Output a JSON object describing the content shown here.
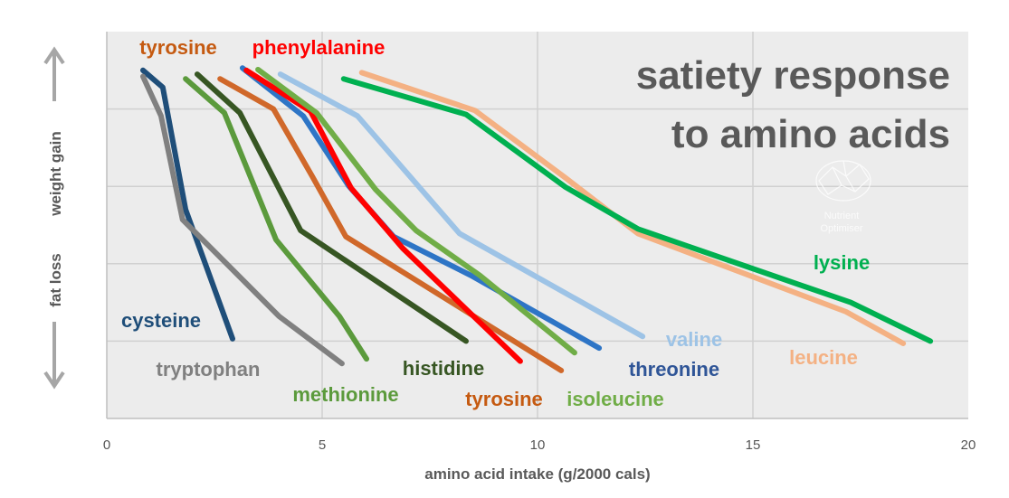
{
  "chart_data": {
    "type": "line",
    "title": "satiety response to amino acids",
    "title_lines": [
      "satiety response",
      "to amino acids"
    ],
    "xlabel": "amino acid intake (g/2000 cals)",
    "ylabel_top": "weight gain",
    "ylabel_bottom": "fat loss",
    "xlim": [
      0,
      20
    ],
    "ylim": [
      0,
      5
    ],
    "xticks": [
      0,
      5,
      10,
      15,
      20
    ],
    "grid": true,
    "legend": "none (direct labels)",
    "watermark": "Nutrient Optimiser",
    "series": [
      {
        "name": "cysteine",
        "color": "#1f4e79",
        "x": [
          0.84,
          1.3,
          1.83,
          2.92
        ],
        "y": [
          4.5,
          4.28,
          2.7,
          1.03
        ]
      },
      {
        "name": "tryptophan",
        "color": "#808080",
        "x": [
          0.84,
          1.26,
          1.76,
          4.0,
          5.46
        ],
        "y": [
          4.42,
          3.91,
          2.57,
          1.32,
          0.71
        ]
      },
      {
        "name": "methionine",
        "color": "#5b9a3c",
        "x": [
          1.83,
          2.73,
          3.93,
          5.4,
          6.03
        ],
        "y": [
          4.39,
          3.95,
          2.31,
          1.32,
          0.77
        ]
      },
      {
        "name": "histidine",
        "color": "#375623",
        "x": [
          2.1,
          3.09,
          4.5,
          8.34
        ],
        "y": [
          4.45,
          3.95,
          2.43,
          1.0
        ]
      },
      {
        "name": "tyrosine",
        "color": "#d0682a",
        "x": [
          2.63,
          3.87,
          4.77,
          5.55,
          10.55
        ],
        "y": [
          4.39,
          4.0,
          3.13,
          2.35,
          0.62
        ]
      },
      {
        "name": "threonine",
        "color": "#2e75c6",
        "x": [
          3.15,
          4.56,
          5.61,
          6.66,
          8.45,
          11.43
        ],
        "y": [
          4.53,
          3.91,
          3.01,
          2.35,
          1.85,
          0.91
        ]
      },
      {
        "name": "phenylalanine",
        "color": "#ff0000",
        "x": [
          3.24,
          4.73,
          5.67,
          6.87,
          9.6
        ],
        "y": [
          4.5,
          3.97,
          2.98,
          2.2,
          0.74
        ]
      },
      {
        "name": "isoleucine",
        "color": "#70ad47",
        "x": [
          3.51,
          4.87,
          6.24,
          7.18,
          8.66,
          10.86
        ],
        "y": [
          4.51,
          3.95,
          2.96,
          2.43,
          1.85,
          0.85
        ]
      },
      {
        "name": "valine",
        "color": "#9dc3e6",
        "x": [
          4.03,
          5.82,
          8.19,
          12.44
        ],
        "y": [
          4.45,
          3.91,
          2.39,
          1.06
        ]
      },
      {
        "name": "leucine",
        "color": "#f4b183",
        "x": [
          5.92,
          8.55,
          10.65,
          12.33,
          17.16,
          18.49
        ],
        "y": [
          4.47,
          3.98,
          3.11,
          2.39,
          1.38,
          0.97
        ]
      },
      {
        "name": "lysine",
        "color": "#00b050",
        "x": [
          5.5,
          8.34,
          10.65,
          12.33,
          17.27,
          19.12
        ],
        "y": [
          4.39,
          3.93,
          2.99,
          2.45,
          1.5,
          1.0
        ]
      }
    ],
    "series_labels": [
      {
        "text": "cysteine",
        "color": "#1f4e79"
      },
      {
        "text": "tryptophan",
        "color": "#808080"
      },
      {
        "text": "methionine",
        "color": "#5b9a3c"
      },
      {
        "text": "histidine",
        "color": "#375623"
      },
      {
        "text": "tyrosine",
        "color": "#c55a11"
      },
      {
        "text": "threonine",
        "color": "#2f5597"
      },
      {
        "text": "isoleucine",
        "color": "#70ad47"
      },
      {
        "text": "valine",
        "color": "#9dc3e6"
      },
      {
        "text": "leucine",
        "color": "#f4b183"
      },
      {
        "text": "lysine",
        "color": "#00b050"
      },
      {
        "text": "tyrosine",
        "color": "#c55a11"
      },
      {
        "text": "phenylalanine",
        "color": "#ff0000"
      }
    ]
  }
}
